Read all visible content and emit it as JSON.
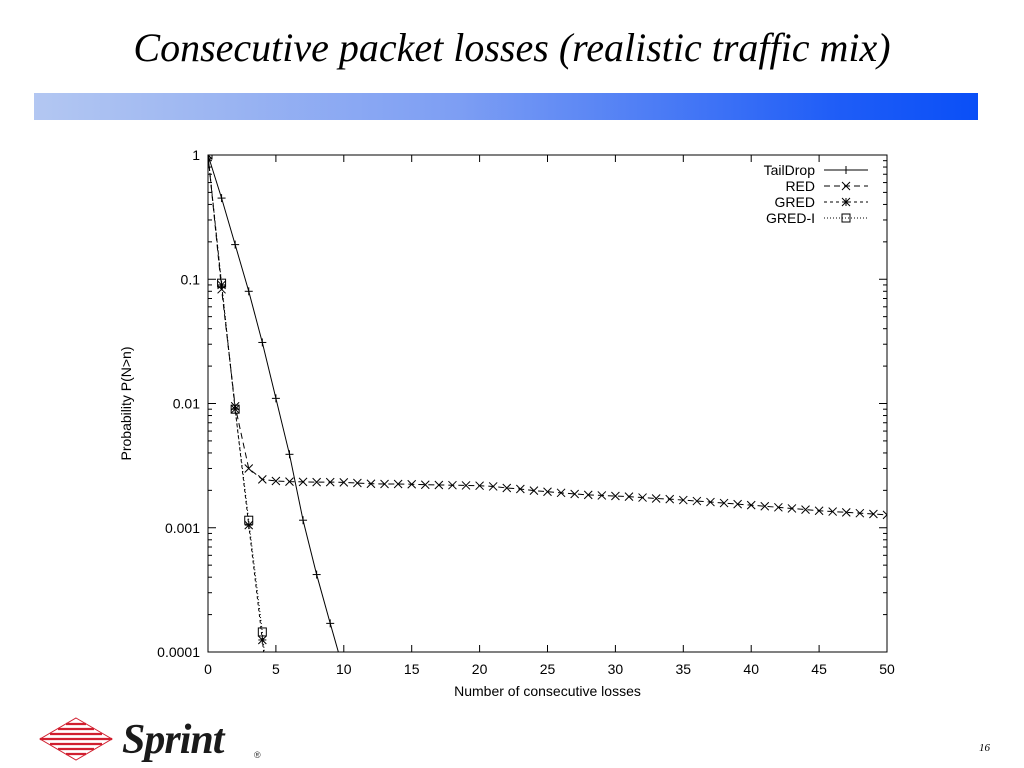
{
  "slide": {
    "title": "Consecutive packet losses (realistic traffic mix)",
    "page_number": "16",
    "logo_text": "Sprint",
    "logo_mark": "®",
    "accent_bar_colors": [
      "#b3c7f2",
      "#0a4ff7"
    ]
  },
  "chart_data": {
    "type": "line",
    "title": "",
    "xlabel": "Number of consecutive losses",
    "ylabel": "Probability P(N>n)",
    "xlim": [
      0,
      50
    ],
    "ylim": [
      0.0001,
      1
    ],
    "y_scale": "log",
    "x_ticks": [
      0,
      5,
      10,
      15,
      20,
      25,
      30,
      35,
      40,
      45,
      50
    ],
    "y_ticks": [
      {
        "value": 1,
        "label": "1"
      },
      {
        "value": 0.1,
        "label": "0.1"
      },
      {
        "value": 0.01,
        "label": "0.01"
      },
      {
        "value": 0.001,
        "label": "0.001"
      },
      {
        "value": 0.0001,
        "label": "0.0001"
      }
    ],
    "grid": false,
    "legend_position": "top-right",
    "series": [
      {
        "name": "TailDrop",
        "marker": "plus",
        "dash": "",
        "points": [
          [
            0,
            1
          ],
          [
            1,
            0.45
          ],
          [
            2,
            0.19
          ],
          [
            3,
            0.08
          ],
          [
            4,
            0.031
          ],
          [
            5,
            0.011
          ],
          [
            6,
            0.0039
          ],
          [
            7,
            0.00115
          ],
          [
            8,
            0.00042
          ],
          [
            9,
            0.00017
          ],
          [
            9.6,
            0.0001
          ]
        ]
      },
      {
        "name": "RED",
        "marker": "x",
        "dash": "6,4",
        "points": [
          [
            0,
            1
          ],
          [
            1,
            0.083
          ],
          [
            2,
            0.0095
          ],
          [
            3,
            0.003
          ],
          [
            4,
            0.00245
          ],
          [
            5,
            0.00238
          ],
          [
            6,
            0.00235
          ],
          [
            7,
            0.00234
          ],
          [
            8,
            0.00233
          ],
          [
            9,
            0.00233
          ],
          [
            10,
            0.00232
          ],
          [
            11,
            0.00229
          ],
          [
            12,
            0.00226
          ],
          [
            13,
            0.00225
          ],
          [
            14,
            0.00225
          ],
          [
            15,
            0.00224
          ],
          [
            16,
            0.00222
          ],
          [
            17,
            0.00221
          ],
          [
            18,
            0.0022
          ],
          [
            19,
            0.00219
          ],
          [
            20,
            0.00218
          ],
          [
            21,
            0.00215
          ],
          [
            22,
            0.00209
          ],
          [
            23,
            0.00205
          ],
          [
            24,
            0.00199
          ],
          [
            25,
            0.00195
          ],
          [
            26,
            0.00191
          ],
          [
            27,
            0.00187
          ],
          [
            28,
            0.00184
          ],
          [
            29,
            0.00182
          ],
          [
            30,
            0.0018
          ],
          [
            31,
            0.00178
          ],
          [
            32,
            0.00175
          ],
          [
            33,
            0.00172
          ],
          [
            34,
            0.0017
          ],
          [
            35,
            0.00167
          ],
          [
            36,
            0.00164
          ],
          [
            37,
            0.00161
          ],
          [
            38,
            0.00158
          ],
          [
            39,
            0.00155
          ],
          [
            40,
            0.00152
          ],
          [
            41,
            0.00149
          ],
          [
            42,
            0.00146
          ],
          [
            43,
            0.00143
          ],
          [
            44,
            0.0014
          ],
          [
            45,
            0.00137
          ],
          [
            46,
            0.00135
          ],
          [
            47,
            0.00133
          ],
          [
            48,
            0.00131
          ],
          [
            49,
            0.00129
          ],
          [
            50,
            0.00127
          ]
        ]
      },
      {
        "name": "GRED",
        "marker": "star",
        "dash": "3,3",
        "points": [
          [
            0,
            1
          ],
          [
            1,
            0.09
          ],
          [
            2,
            0.009
          ],
          [
            3,
            0.00105
          ],
          [
            4,
            0.000125
          ],
          [
            4.1,
            0.0001
          ]
        ]
      },
      {
        "name": "GRED-I",
        "marker": "square",
        "dash": "1,2",
        "points": [
          [
            0,
            1
          ],
          [
            1,
            0.093
          ],
          [
            2,
            0.009
          ],
          [
            3,
            0.00115
          ],
          [
            4,
            0.000145
          ],
          [
            4.15,
            0.0001
          ]
        ]
      }
    ]
  }
}
